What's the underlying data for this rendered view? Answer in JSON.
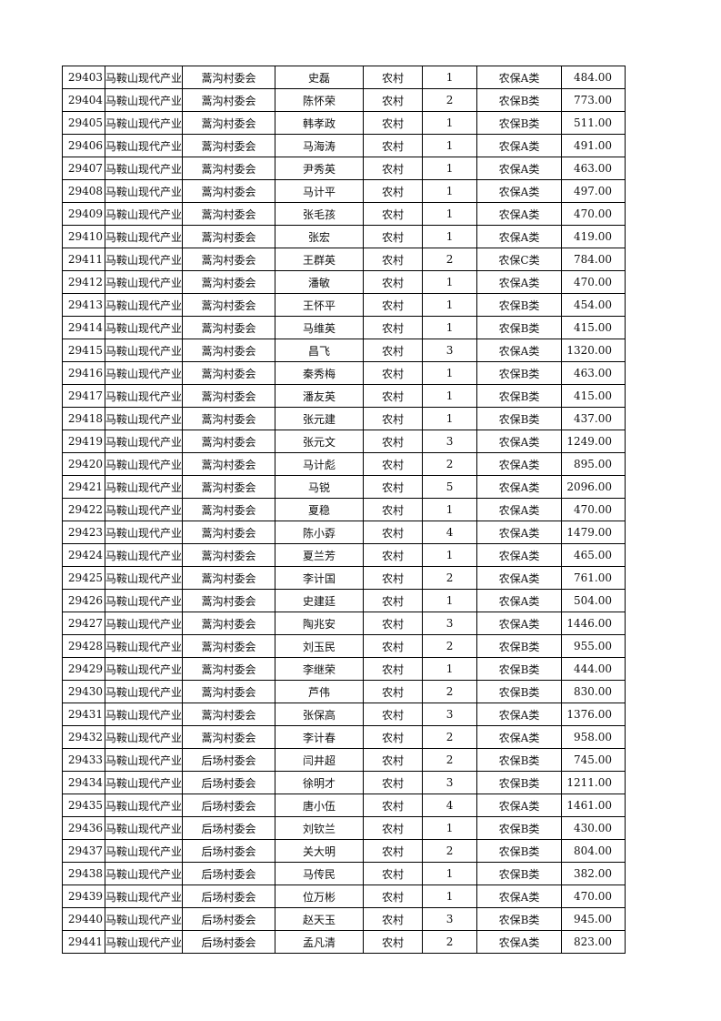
{
  "table": {
    "rows": [
      [
        "29403",
        "马鞍山现代产业",
        "蒿沟村委会",
        "史磊",
        "农村",
        "1",
        "农保A类",
        "484.00"
      ],
      [
        "29404",
        "马鞍山现代产业",
        "蒿沟村委会",
        "陈怀荣",
        "农村",
        "2",
        "农保B类",
        "773.00"
      ],
      [
        "29405",
        "马鞍山现代产业",
        "蒿沟村委会",
        "韩孝政",
        "农村",
        "1",
        "农保B类",
        "511.00"
      ],
      [
        "29406",
        "马鞍山现代产业",
        "蒿沟村委会",
        "马海涛",
        "农村",
        "1",
        "农保A类",
        "491.00"
      ],
      [
        "29407",
        "马鞍山现代产业",
        "蒿沟村委会",
        "尹秀英",
        "农村",
        "1",
        "农保A类",
        "463.00"
      ],
      [
        "29408",
        "马鞍山现代产业",
        "蒿沟村委会",
        "马计平",
        "农村",
        "1",
        "农保A类",
        "497.00"
      ],
      [
        "29409",
        "马鞍山现代产业",
        "蒿沟村委会",
        "张毛孩",
        "农村",
        "1",
        "农保A类",
        "470.00"
      ],
      [
        "29410",
        "马鞍山现代产业",
        "蒿沟村委会",
        "张宏",
        "农村",
        "1",
        "农保A类",
        "419.00"
      ],
      [
        "29411",
        "马鞍山现代产业",
        "蒿沟村委会",
        "王群英",
        "农村",
        "2",
        "农保C类",
        "784.00"
      ],
      [
        "29412",
        "马鞍山现代产业",
        "蒿沟村委会",
        "潘敏",
        "农村",
        "1",
        "农保A类",
        "470.00"
      ],
      [
        "29413",
        "马鞍山现代产业",
        "蒿沟村委会",
        "王怀平",
        "农村",
        "1",
        "农保B类",
        "454.00"
      ],
      [
        "29414",
        "马鞍山现代产业",
        "蒿沟村委会",
        "马维英",
        "农村",
        "1",
        "农保B类",
        "415.00"
      ],
      [
        "29415",
        "马鞍山现代产业",
        "蒿沟村委会",
        "昌飞",
        "农村",
        "3",
        "农保A类",
        "1320.00"
      ],
      [
        "29416",
        "马鞍山现代产业",
        "蒿沟村委会",
        "秦秀梅",
        "农村",
        "1",
        "农保B类",
        "463.00"
      ],
      [
        "29417",
        "马鞍山现代产业",
        "蒿沟村委会",
        "潘友英",
        "农村",
        "1",
        "农保B类",
        "415.00"
      ],
      [
        "29418",
        "马鞍山现代产业",
        "蒿沟村委会",
        "张元建",
        "农村",
        "1",
        "农保B类",
        "437.00"
      ],
      [
        "29419",
        "马鞍山现代产业",
        "蒿沟村委会",
        "张元文",
        "农村",
        "3",
        "农保A类",
        "1249.00"
      ],
      [
        "29420",
        "马鞍山现代产业",
        "蒿沟村委会",
        "马计彪",
        "农村",
        "2",
        "农保A类",
        "895.00"
      ],
      [
        "29421",
        "马鞍山现代产业",
        "蒿沟村委会",
        "马锐",
        "农村",
        "5",
        "农保A类",
        "2096.00"
      ],
      [
        "29422",
        "马鞍山现代产业",
        "蒿沟村委会",
        "夏稳",
        "农村",
        "1",
        "农保A类",
        "470.00"
      ],
      [
        "29423",
        "马鞍山现代产业",
        "蒿沟村委会",
        "陈小孬",
        "农村",
        "4",
        "农保A类",
        "1479.00"
      ],
      [
        "29424",
        "马鞍山现代产业",
        "蒿沟村委会",
        "夏兰芳",
        "农村",
        "1",
        "农保A类",
        "465.00"
      ],
      [
        "29425",
        "马鞍山现代产业",
        "蒿沟村委会",
        "李计国",
        "农村",
        "2",
        "农保A类",
        "761.00"
      ],
      [
        "29426",
        "马鞍山现代产业",
        "蒿沟村委会",
        "史建廷",
        "农村",
        "1",
        "农保A类",
        "504.00"
      ],
      [
        "29427",
        "马鞍山现代产业",
        "蒿沟村委会",
        "陶兆安",
        "农村",
        "3",
        "农保A类",
        "1446.00"
      ],
      [
        "29428",
        "马鞍山现代产业",
        "蒿沟村委会",
        "刘玉民",
        "农村",
        "2",
        "农保B类",
        "955.00"
      ],
      [
        "29429",
        "马鞍山现代产业",
        "蒿沟村委会",
        "李继荣",
        "农村",
        "1",
        "农保B类",
        "444.00"
      ],
      [
        "29430",
        "马鞍山现代产业",
        "蒿沟村委会",
        "芦伟",
        "农村",
        "2",
        "农保B类",
        "830.00"
      ],
      [
        "29431",
        "马鞍山现代产业",
        "蒿沟村委会",
        "张保高",
        "农村",
        "3",
        "农保A类",
        "1376.00"
      ],
      [
        "29432",
        "马鞍山现代产业",
        "蒿沟村委会",
        "李计春",
        "农村",
        "2",
        "农保A类",
        "958.00"
      ],
      [
        "29433",
        "马鞍山现代产业",
        "后场村委会",
        "闫井超",
        "农村",
        "2",
        "农保B类",
        "745.00"
      ],
      [
        "29434",
        "马鞍山现代产业",
        "后场村委会",
        "徐明才",
        "农村",
        "3",
        "农保B类",
        "1211.00"
      ],
      [
        "29435",
        "马鞍山现代产业",
        "后场村委会",
        "唐小伍",
        "农村",
        "4",
        "农保A类",
        "1461.00"
      ],
      [
        "29436",
        "马鞍山现代产业",
        "后场村委会",
        "刘钦兰",
        "农村",
        "1",
        "农保B类",
        "430.00"
      ],
      [
        "29437",
        "马鞍山现代产业",
        "后场村委会",
        "关大明",
        "农村",
        "2",
        "农保B类",
        "804.00"
      ],
      [
        "29438",
        "马鞍山现代产业",
        "后场村委会",
        "马传民",
        "农村",
        "1",
        "农保B类",
        "382.00"
      ],
      [
        "29439",
        "马鞍山现代产业",
        "后场村委会",
        "位万彬",
        "农村",
        "1",
        "农保A类",
        "470.00"
      ],
      [
        "29440",
        "马鞍山现代产业",
        "后场村委会",
        "赵天玉",
        "农村",
        "3",
        "农保B类",
        "945.00"
      ],
      [
        "29441",
        "马鞍山现代产业",
        "后场村委会",
        "孟凡清",
        "农村",
        "2",
        "农保A类",
        "823.00"
      ]
    ]
  }
}
